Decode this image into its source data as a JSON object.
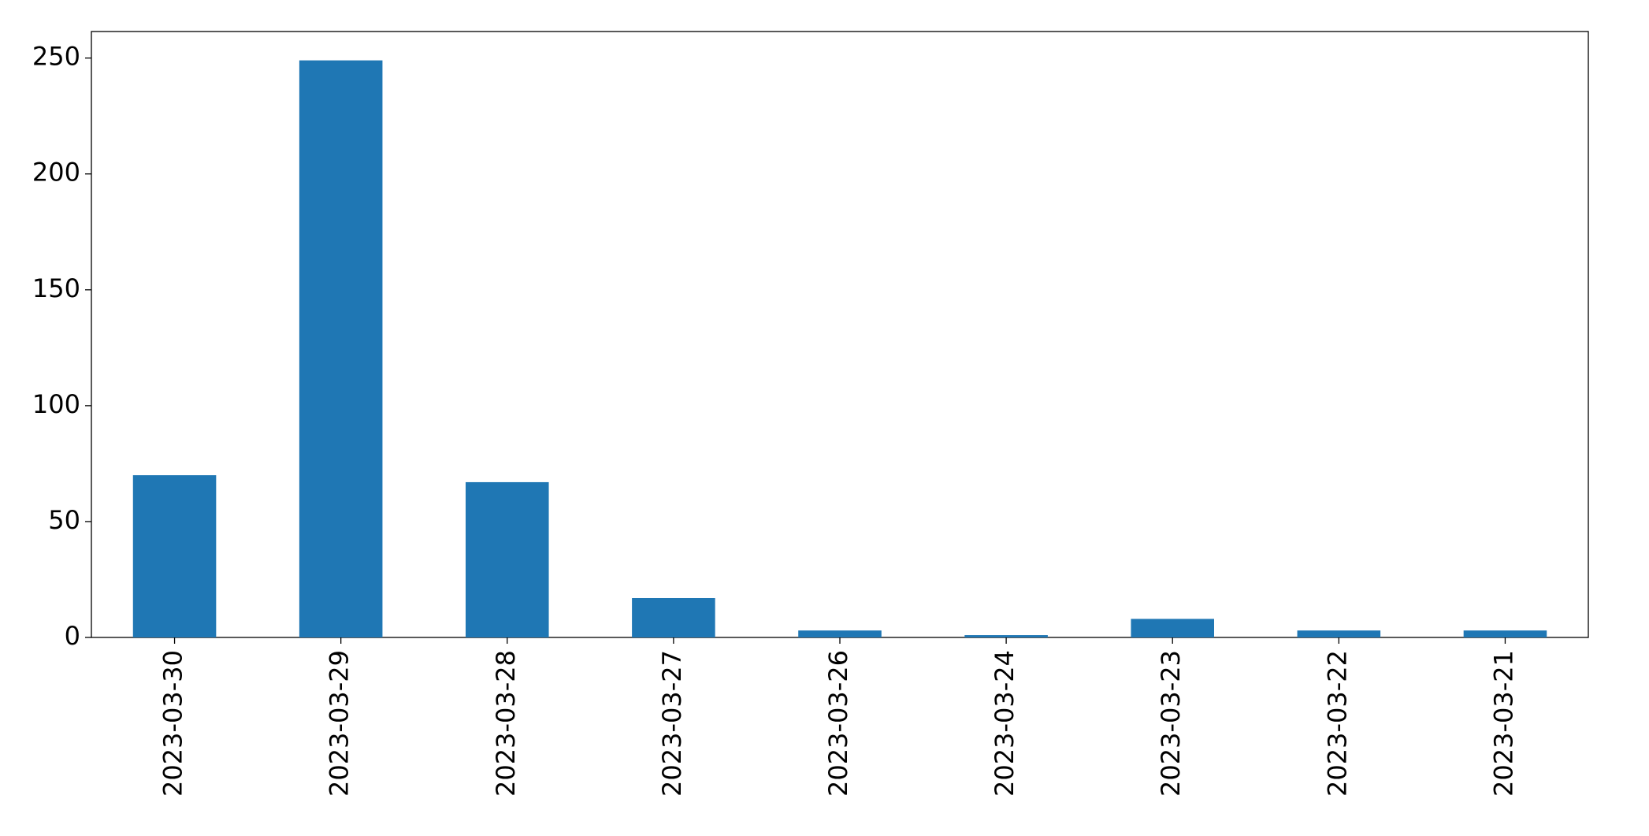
{
  "chart_data": {
    "type": "bar",
    "categories": [
      "2023-03-30",
      "2023-03-29",
      "2023-03-28",
      "2023-03-27",
      "2023-03-26",
      "2023-03-24",
      "2023-03-23",
      "2023-03-22",
      "2023-03-21"
    ],
    "values": [
      70,
      249,
      67,
      17,
      3,
      1,
      8,
      3,
      3
    ],
    "color": "#1f77b4",
    "ylim": [
      0,
      261.45
    ],
    "yticks": [
      0,
      50,
      100,
      150,
      200,
      250
    ],
    "grid": false
  }
}
